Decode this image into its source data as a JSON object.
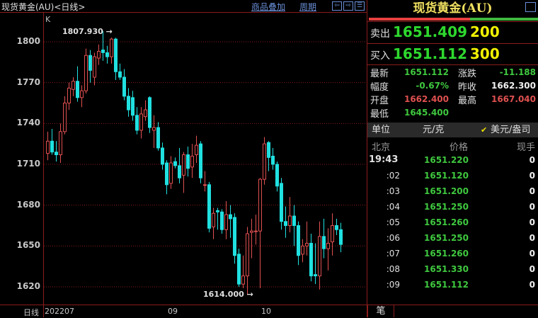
{
  "header": {
    "title": "现货黄金(AU)<日线>",
    "overlay_link": "商品叠加",
    "period_link": "周期",
    "nav_icons": [
      "arrow-left-icon",
      "arrow-right-icon",
      "split-panel-icon"
    ]
  },
  "chart_meta": {
    "indicator_label": "K",
    "period_label": "日线",
    "high_annotation": "1807.930",
    "low_annotation": "1614.000"
  },
  "chart_data": {
    "type": "candlestick",
    "ylim": [
      1605,
      1820
    ],
    "y_ticks": [
      "1800",
      "1770",
      "1740",
      "1710",
      "1680",
      "1650",
      "1620"
    ],
    "x_ticks": [
      {
        "label": "202207",
        "index": 0
      },
      {
        "label": "09",
        "index": 29
      },
      {
        "label": "10",
        "index": 51
      }
    ],
    "grid": true,
    "colors": {
      "up": "#e05050",
      "down": "#20e0e0",
      "grid": "#8a1c1c"
    },
    "ohlc": [
      [
        1718,
        1734,
        1713,
        1727
      ],
      [
        1727,
        1736,
        1717,
        1719
      ],
      [
        1719,
        1727,
        1712,
        1717
      ],
      [
        1717,
        1740,
        1711,
        1734
      ],
      [
        1734,
        1760,
        1732,
        1755
      ],
      [
        1755,
        1770,
        1750,
        1766
      ],
      [
        1765,
        1774,
        1760,
        1771
      ],
      [
        1771,
        1782,
        1756,
        1759
      ],
      [
        1759,
        1768,
        1752,
        1764
      ],
      [
        1764,
        1795,
        1762,
        1790
      ],
      [
        1790,
        1794,
        1770,
        1779
      ],
      [
        1774,
        1792,
        1768,
        1789
      ],
      [
        1788,
        1798,
        1783,
        1793
      ],
      [
        1794,
        1807.93,
        1786,
        1792
      ],
      [
        1792,
        1797,
        1784,
        1789
      ],
      [
        1789,
        1803,
        1784,
        1802
      ],
      [
        1802,
        1803,
        1772,
        1778
      ],
      [
        1778,
        1784,
        1772,
        1774
      ],
      [
        1774,
        1780,
        1757,
        1760
      ],
      [
        1760,
        1766,
        1745,
        1750
      ],
      [
        1759,
        1764,
        1742,
        1746
      ],
      [
        1746,
        1752,
        1732,
        1735
      ],
      [
        1735,
        1752,
        1729,
        1747
      ],
      [
        1745,
        1757,
        1742,
        1750
      ],
      [
        1759,
        1760,
        1733,
        1737
      ],
      [
        1735,
        1746,
        1722,
        1737
      ],
      [
        1737,
        1741,
        1720,
        1722
      ],
      [
        1722,
        1726,
        1706,
        1710
      ],
      [
        1711,
        1713,
        1688,
        1695
      ],
      [
        1696,
        1716,
        1692,
        1711
      ],
      [
        1712,
        1715,
        1707,
        1709
      ],
      [
        1709,
        1722,
        1696,
        1700
      ],
      [
        1702,
        1719,
        1689,
        1717
      ],
      [
        1717,
        1723,
        1701,
        1707
      ],
      [
        1708,
        1725,
        1700,
        1716
      ],
      [
        1717,
        1731,
        1711,
        1724
      ],
      [
        1725,
        1727,
        1696,
        1700
      ],
      [
        1695,
        1705,
        1690,
        1695
      ],
      [
        1695,
        1697,
        1660,
        1663
      ],
      [
        1664,
        1678,
        1655,
        1674
      ],
      [
        1676,
        1678,
        1662,
        1675
      ],
      [
        1675,
        1677,
        1659,
        1662
      ],
      [
        1662,
        1683,
        1655,
        1673
      ],
      [
        1673,
        1680,
        1656,
        1670
      ],
      [
        1671,
        1674,
        1637,
        1643
      ],
      [
        1644,
        1648,
        1620,
        1622
      ],
      [
        1622,
        1643,
        1619,
        1628
      ],
      [
        1628,
        1664,
        1614,
        1659
      ],
      [
        1660,
        1670,
        1641,
        1661
      ],
      [
        1661,
        1673,
        1651,
        1661
      ],
      [
        1661,
        1700,
        1619,
        1699
      ],
      [
        1699,
        1730,
        1695,
        1725
      ],
      [
        1726,
        1727,
        1705,
        1715
      ],
      [
        1716,
        1722,
        1706,
        1710
      ],
      [
        1710,
        1712,
        1690,
        1694
      ],
      [
        1696,
        1700,
        1662,
        1668
      ],
      [
        1668,
        1679,
        1656,
        1665
      ],
      [
        1665,
        1686,
        1660,
        1672
      ],
      [
        1672,
        1680,
        1650,
        1665
      ],
      [
        1665,
        1668,
        1636,
        1643
      ],
      [
        1644,
        1655,
        1638,
        1650
      ],
      [
        1650,
        1668,
        1643,
        1652
      ],
      [
        1652,
        1659,
        1624,
        1628
      ],
      [
        1629,
        1652,
        1622,
        1628
      ],
      [
        1628,
        1668,
        1618,
        1657
      ],
      [
        1657,
        1670,
        1641,
        1648
      ],
      [
        1648,
        1663,
        1632,
        1652
      ],
      [
        1653,
        1674,
        1643,
        1665
      ],
      [
        1665,
        1670,
        1658,
        1662
      ],
      [
        1662,
        1667.04,
        1645.4,
        1651.112
      ]
    ]
  },
  "quote": {
    "title": "现货黄金(AU)",
    "bid_ask_ratio": 0.6,
    "sell_label": "卖出",
    "sell_price": "1651.409",
    "sell_volume": "200",
    "buy_label": "买入",
    "buy_price": "1651.112",
    "buy_volume": "300",
    "stats": [
      {
        "label": "最新",
        "value": "1651.112",
        "color": "g"
      },
      {
        "label": "涨跌",
        "value": "-11.188",
        "color": "g"
      },
      {
        "label": "幅度",
        "value": "-0.67%",
        "color": "g"
      },
      {
        "label": "昨收",
        "value": "1662.300",
        "color": "w"
      },
      {
        "label": "开盘",
        "value": "1662.400",
        "color": "r"
      },
      {
        "label": "最高",
        "value": "1667.040",
        "color": "r"
      },
      {
        "label": "最低",
        "value": "1645.400",
        "color": "g"
      }
    ],
    "unit_label": "单位",
    "unit_option_1": "元/克",
    "unit_option_2": "美元/盎司",
    "unit_selected": "美元/盎司"
  },
  "ticks": {
    "headers": [
      "北京",
      "价格",
      "现手"
    ],
    "rows": [
      {
        "time": "19:43",
        "price": "1651.220",
        "vol": "0"
      },
      {
        "time": ":02",
        "price": "1651.120",
        "vol": "0"
      },
      {
        "time": ":03",
        "price": "1651.200",
        "vol": "0"
      },
      {
        "time": ":04",
        "price": "1651.250",
        "vol": "0"
      },
      {
        "time": ":05",
        "price": "1651.260",
        "vol": "0"
      },
      {
        "time": ":06",
        "price": "1651.250",
        "vol": "0"
      },
      {
        "time": ":07",
        "price": "1651.260",
        "vol": "0"
      },
      {
        "time": ":08",
        "price": "1651.330",
        "vol": "0"
      },
      {
        "time": ":09",
        "price": "1651.112",
        "vol": "0"
      }
    ],
    "tab_label": "笔"
  }
}
